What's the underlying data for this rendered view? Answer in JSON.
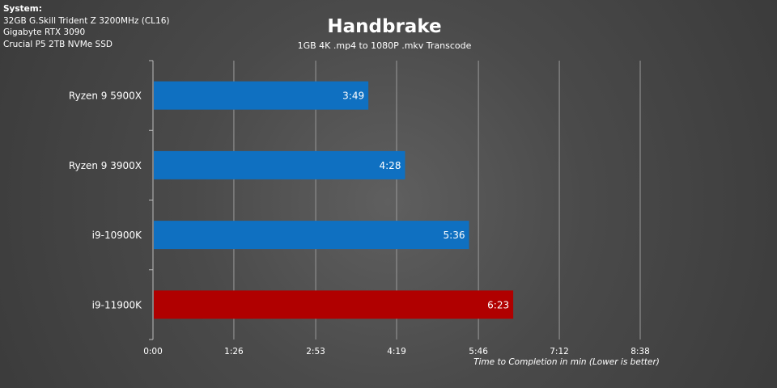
{
  "system": {
    "heading": "System:",
    "lines": [
      "32GB G.Skill Trident Z 3200MHz (CL16)",
      "Gigabyte RTX 3090",
      "Crucial P5 2TB NVMe SSD"
    ]
  },
  "chart_data": {
    "type": "bar",
    "orientation": "horizontal",
    "title": "Handbrake",
    "subtitle": "1GB 4K .mp4 to 1080P .mkv Transcode",
    "xlabel": "Time to Completion in min (Lower is better)",
    "ylabel": "",
    "categories": [
      "Ryzen 9 5900X",
      "Ryzen 9 3900X",
      "i9-10900K",
      "i9-11900K"
    ],
    "values": [
      229,
      268,
      336,
      383
    ],
    "value_labels": [
      "3:49",
      "4:28",
      "5:36",
      "6:23"
    ],
    "bar_colors": [
      "#0f70c1",
      "#0f70c1",
      "#0f70c1",
      "#b00000"
    ],
    "xlim": [
      0,
      518
    ],
    "xticks": [
      0,
      86,
      173,
      259,
      346,
      432,
      518
    ],
    "xtick_labels": [
      "0:00",
      "1:26",
      "2:53",
      "4:19",
      "5:46",
      "7:12",
      "8:38"
    ],
    "grid": "vertical",
    "legend": "none"
  }
}
